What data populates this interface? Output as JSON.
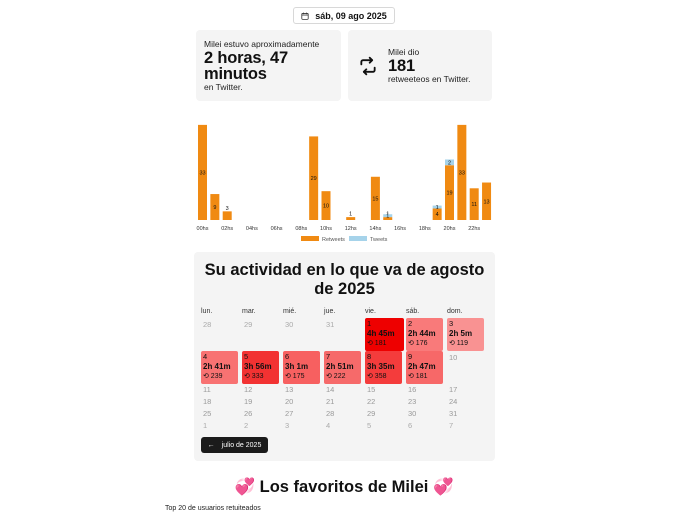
{
  "date_pill": {
    "label": "sáb, 09 ago 2025"
  },
  "card_time": {
    "line1": "Milei estuvo aproximadamente",
    "value": "2 horas, 47 minutos",
    "line2": "en Twitter."
  },
  "card_retweets": {
    "line1": "Milei dio",
    "value": "181",
    "line2": "retweeteos en Twitter."
  },
  "chart_data": {
    "type": "bar",
    "stacked": true,
    "categories": [
      "00hs",
      "01hs",
      "02hs",
      "03hs",
      "04hs",
      "05hs",
      "06hs",
      "07hs",
      "08hs",
      "09hs",
      "10hs",
      "11hs",
      "12hs",
      "13hs",
      "14hs",
      "15hs",
      "16hs",
      "17hs",
      "18hs",
      "19hs",
      "20hs",
      "21hs",
      "22hs",
      "23hs"
    ],
    "tick_labels": [
      "00hs",
      "02hs",
      "04hs",
      "06hs",
      "08hs",
      "10hs",
      "12hs",
      "14hs",
      "16hs",
      "18hs",
      "20hs",
      "22hs"
    ],
    "series": [
      {
        "name": "Retweets",
        "color": "#f08a12",
        "values": [
          33,
          9,
          3,
          0,
          0,
          0,
          0,
          0,
          0,
          29,
          10,
          0,
          1,
          0,
          15,
          1,
          0,
          0,
          0,
          4,
          19,
          33,
          11,
          13
        ]
      },
      {
        "name": "Tweets",
        "color": "#a6d3ea",
        "values": [
          0,
          0,
          0,
          0,
          0,
          0,
          0,
          0,
          0,
          0,
          0,
          0,
          0,
          0,
          0,
          1,
          0,
          0,
          0,
          1,
          2,
          0,
          0,
          0
        ]
      }
    ],
    "ylim": [
      0,
      34
    ],
    "legend": "bottom"
  },
  "calendar": {
    "title": "Su actividad en lo que va de agosto de 2025",
    "weekdays": [
      "lun.",
      "mar.",
      "mié.",
      "jue.",
      "vie.",
      "sáb.",
      "dom."
    ],
    "active_days": [
      {
        "day": "1",
        "time": "4h 45m",
        "retweets": "181",
        "color": "#ee0000"
      },
      {
        "day": "2",
        "time": "2h 44m",
        "retweets": "176",
        "color": "#f97a7a"
      },
      {
        "day": "3",
        "time": "2h 5m",
        "retweets": "119",
        "color": "#f99292"
      },
      {
        "day": "4",
        "time": "2h 41m",
        "retweets": "239",
        "color": "#f87272"
      },
      {
        "day": "5",
        "time": "3h 56m",
        "retweets": "333",
        "color": "#f23232"
      },
      {
        "day": "6",
        "time": "3h 1m",
        "retweets": "175",
        "color": "#f76060"
      },
      {
        "day": "7",
        "time": "2h 51m",
        "retweets": "222",
        "color": "#f66a6a"
      },
      {
        "day": "8",
        "time": "3h 35m",
        "retweets": "358",
        "color": "#f43c3c"
      },
      {
        "day": "9",
        "time": "2h 47m",
        "retweets": "181",
        "color": "#f76868"
      }
    ],
    "prev_days": [
      "28",
      "29",
      "30",
      "31"
    ],
    "future_days": [
      "10",
      "11",
      "12",
      "13",
      "14",
      "15",
      "16",
      "17",
      "18",
      "19",
      "20",
      "21",
      "22",
      "23",
      "24",
      "25",
      "26",
      "27",
      "28",
      "29",
      "30",
      "31"
    ],
    "next_days": [
      "1",
      "2",
      "3",
      "4",
      "5",
      "6",
      "7"
    ],
    "prev_button": "julio de 2025"
  },
  "favorites": {
    "title": "Los favoritos de Milei",
    "subtitle": "Top 20 de usuarios retuiteados"
  }
}
